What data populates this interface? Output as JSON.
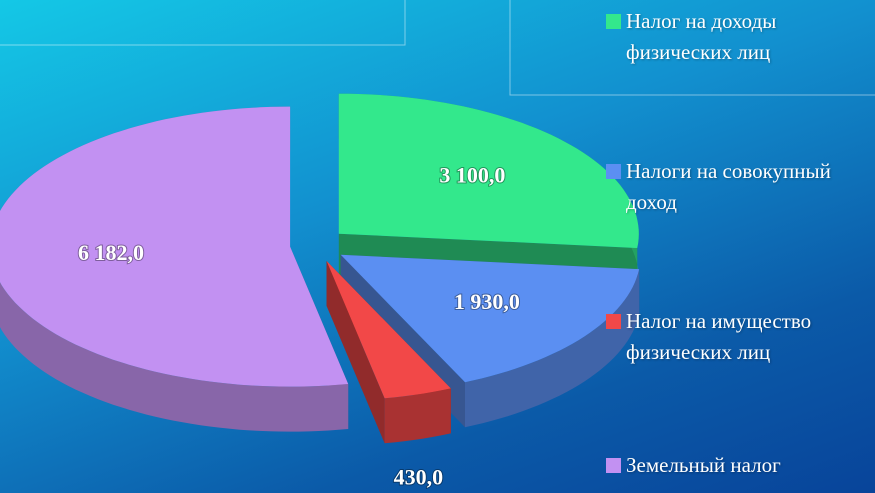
{
  "chart_data": {
    "type": "pie3d",
    "categories": [
      "Налог на доходы физических лиц",
      "Налоги на совокупный доход",
      "Налог на имущество физических лиц",
      "Земельный налог"
    ],
    "values": [
      3100,
      1930,
      430,
      6182
    ],
    "value_labels": [
      "3 100,0",
      "1 930,0",
      "430,0",
      "6 182,0"
    ],
    "colors": [
      "#33e88c",
      "#5b8ff2",
      "#f24848",
      "#c291f2"
    ],
    "legend": "right"
  }
}
